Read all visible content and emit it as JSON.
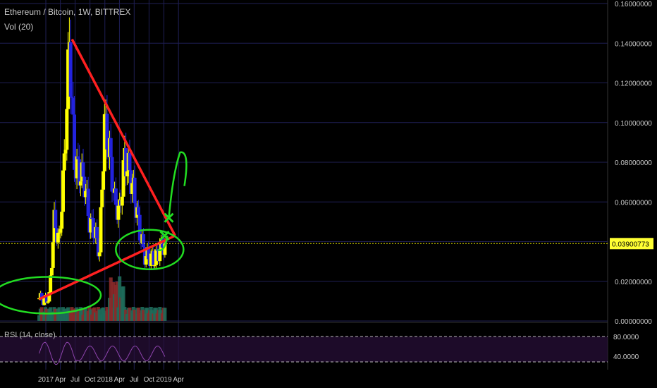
{
  "header": {
    "title": "Ethereum / Bitcoin, 1W, BITTREX",
    "volume_label": "Vol (20)"
  },
  "rsi": {
    "label": "RSI (14, close)",
    "tick_labels": [
      "80.0000",
      "40.0000"
    ],
    "color": "#8e44ad"
  },
  "price_axis": {
    "tick_labels": [
      "0.16000000",
      "0.14000000",
      "0.12000000",
      "0.10000000",
      "0.08000000",
      "0.06000000",
      "0.04000000",
      "0.02000000",
      "0.00000000"
    ]
  },
  "time_axis": {
    "tick_labels": [
      "2017",
      "Apr",
      "Jul",
      "Oct",
      "2018",
      "Apr",
      "Jul",
      "Oct",
      "2019",
      "Apr"
    ]
  },
  "last_price": {
    "value": 0.03900773,
    "label": "0.03900773"
  },
  "colors": {
    "background": "#000000",
    "bull": "#ffff00",
    "bear": "#2222dd",
    "trendline": "#ff2020",
    "annotation": "#22dd22",
    "vol_up": "#1e6b5a",
    "vol_down": "#8b2a2a"
  },
  "chart_data": {
    "type": "candlestick",
    "title": "Ethereum / Bitcoin, 1W, BITTREX",
    "y_axis": {
      "min": 0,
      "max": 0.16,
      "side": "right"
    },
    "x_axis": {
      "start": "2016-11-21",
      "end": "2019-04-15"
    },
    "grid": true,
    "ohlc_approx": [
      {
        "date": "2016-12",
        "close": 0.0115
      },
      {
        "date": "2017-01",
        "close": 0.0105
      },
      {
        "date": "2017-02",
        "close": 0.012
      },
      {
        "date": "2017-03",
        "close": 0.05
      },
      {
        "date": "2017-04",
        "close": 0.04
      },
      {
        "date": "2017-05",
        "close": 0.08
      },
      {
        "date": "2017-06",
        "close": 0.14
      },
      {
        "date": "2017-07",
        "close": 0.08
      },
      {
        "date": "2017-08",
        "close": 0.075
      },
      {
        "date": "2017-09",
        "close": 0.07
      },
      {
        "date": "2017-10",
        "close": 0.05
      },
      {
        "date": "2017-11",
        "close": 0.045
      },
      {
        "date": "2017-12",
        "close": 0.035
      },
      {
        "date": "2018-01",
        "close": 0.1
      },
      {
        "date": "2018-02",
        "close": 0.085
      },
      {
        "date": "2018-03",
        "close": 0.06
      },
      {
        "date": "2018-04",
        "close": 0.055
      },
      {
        "date": "2018-05",
        "close": 0.082
      },
      {
        "date": "2018-06",
        "close": 0.075
      },
      {
        "date": "2018-07",
        "close": 0.062
      },
      {
        "date": "2018-08",
        "close": 0.045
      },
      {
        "date": "2018-09",
        "close": 0.033
      },
      {
        "date": "2018-10",
        "close": 0.032
      },
      {
        "date": "2018-11",
        "close": 0.031
      },
      {
        "date": "2018-12",
        "close": 0.036
      },
      {
        "date": "2019-01",
        "close": 0.039
      }
    ],
    "trendlines": [
      {
        "from": {
          "date": "2017-06-12",
          "price": 0.142
        },
        "to": {
          "date": "2019-03-11",
          "price": 0.043
        }
      },
      {
        "from": {
          "date": "2016-11-21",
          "price": 0.011
        },
        "to": {
          "date": "2019-03-11",
          "price": 0.043
        }
      }
    ]
  }
}
